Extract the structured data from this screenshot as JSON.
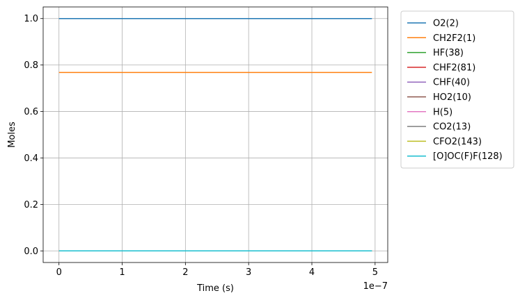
{
  "chart_data": {
    "type": "line",
    "title": "",
    "xlabel": "Time  (s)",
    "ylabel": "Moles",
    "x_offset_label": "1e−7",
    "xlim": [
      -2.5e-08,
      5.2e-07
    ],
    "ylim": [
      -0.05,
      1.05
    ],
    "x_ticks": [
      0,
      1e-07,
      2e-07,
      3e-07,
      4e-07,
      5e-07
    ],
    "x_tick_labels": [
      "0",
      "1",
      "2",
      "3",
      "4",
      "5"
    ],
    "y_ticks": [
      0.0,
      0.2,
      0.4,
      0.6,
      0.8,
      1.0
    ],
    "y_tick_labels": [
      "0.0",
      "0.2",
      "0.4",
      "0.6",
      "0.8",
      "1.0"
    ],
    "grid": true,
    "legend_position": "outside-right-top",
    "x": [
      0,
      4.95e-07
    ],
    "series": [
      {
        "name": "O2(2)",
        "color": "#1f77b4",
        "values": [
          1.0,
          1.0
        ]
      },
      {
        "name": "CH2F2(1)",
        "color": "#ff7f0e",
        "values": [
          0.768,
          0.768
        ]
      },
      {
        "name": "HF(38)",
        "color": "#2ca02c",
        "values": [
          0.0,
          0.0
        ]
      },
      {
        "name": "CHF2(81)",
        "color": "#d62728",
        "values": [
          0.0,
          0.0
        ]
      },
      {
        "name": "CHF(40)",
        "color": "#9467bd",
        "values": [
          0.0,
          0.0
        ]
      },
      {
        "name": "HO2(10)",
        "color": "#8c564b",
        "values": [
          0.0,
          0.0
        ]
      },
      {
        "name": "H(5)",
        "color": "#e377c2",
        "values": [
          0.0,
          0.0
        ]
      },
      {
        "name": "CO2(13)",
        "color": "#7f7f7f",
        "values": [
          0.0,
          0.0
        ]
      },
      {
        "name": "CFO2(143)",
        "color": "#bcbd22",
        "values": [
          0.0,
          0.0
        ]
      },
      {
        "name": "[O]OC(F)F(128)",
        "color": "#17becf",
        "values": [
          0.0,
          0.0
        ]
      }
    ]
  }
}
